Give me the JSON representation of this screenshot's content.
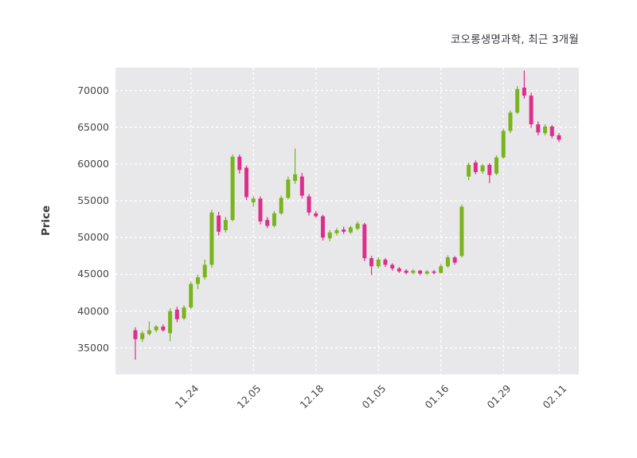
{
  "header": {
    "title": "코오롱생명과학, 최근 3개월"
  },
  "colors": {
    "up": "#7ab41e",
    "down": "#dc2f8c",
    "plot_bg": "#e8e8ea",
    "grid": "#ffffff",
    "title_text": "#3a3a42",
    "tick_text": "#474747"
  },
  "chart_data": {
    "type": "candlestick",
    "title": "코오롱생명과학, 최근 3개월",
    "ylabel": "Price",
    "ylim": [
      31400,
      73100
    ],
    "yticks": [
      35000,
      40000,
      45000,
      50000,
      55000,
      60000,
      65000,
      70000
    ],
    "xticks": [
      {
        "label": "11.24",
        "index": 8
      },
      {
        "label": "12.05",
        "index": 17
      },
      {
        "label": "12.18",
        "index": 26
      },
      {
        "label": "01.05",
        "index": 35
      },
      {
        "label": "01.16",
        "index": 44
      },
      {
        "label": "01.29",
        "index": 53
      },
      {
        "label": "02.11",
        "index": 61
      }
    ],
    "grid": "dashed-white",
    "legend": "none",
    "candles_format": [
      "open",
      "high",
      "low",
      "close"
    ],
    "candles": [
      [
        37400,
        37800,
        33400,
        36200
      ],
      [
        36200,
        37300,
        35800,
        37000
      ],
      [
        36900,
        38600,
        36700,
        37400
      ],
      [
        37400,
        38100,
        37100,
        37900
      ],
      [
        37900,
        38200,
        37200,
        37400
      ],
      [
        37000,
        40400,
        35900,
        40000
      ],
      [
        40200,
        40600,
        38500,
        38900
      ],
      [
        39000,
        40800,
        38800,
        40500
      ],
      [
        40500,
        44000,
        40300,
        43700
      ],
      [
        43700,
        45000,
        43000,
        44600
      ],
      [
        44600,
        47000,
        44300,
        46300
      ],
      [
        46300,
        53800,
        45900,
        53400
      ],
      [
        53000,
        53500,
        50300,
        50800
      ],
      [
        51000,
        52800,
        50700,
        52400
      ],
      [
        52400,
        61300,
        52200,
        61000
      ],
      [
        61000,
        61300,
        58700,
        59200
      ],
      [
        59500,
        59800,
        55100,
        55500
      ],
      [
        54800,
        55600,
        54200,
        55300
      ],
      [
        55300,
        55600,
        51800,
        52200
      ],
      [
        52400,
        52800,
        51300,
        51600
      ],
      [
        51600,
        53600,
        51400,
        53300
      ],
      [
        53300,
        55700,
        53100,
        55400
      ],
      [
        55400,
        58300,
        55200,
        57900
      ],
      [
        57700,
        62100,
        57300,
        58600
      ],
      [
        58300,
        58800,
        55300,
        55700
      ],
      [
        55600,
        55900,
        53000,
        53400
      ],
      [
        53300,
        53600,
        52700,
        52900
      ],
      [
        52900,
        53100,
        49600,
        50000
      ],
      [
        49900,
        51000,
        49500,
        50700
      ],
      [
        50600,
        51300,
        50300,
        51000
      ],
      [
        51100,
        51500,
        50500,
        50800
      ],
      [
        50700,
        51600,
        50500,
        51400
      ],
      [
        51200,
        52200,
        51000,
        51900
      ],
      [
        51800,
        52000,
        46800,
        47200
      ],
      [
        47200,
        47500,
        44900,
        46100
      ],
      [
        46100,
        47300,
        45800,
        47000
      ],
      [
        47000,
        47200,
        46000,
        46300
      ],
      [
        46300,
        46500,
        45500,
        45800
      ],
      [
        45800,
        46000,
        45200,
        45400
      ],
      [
        45500,
        45700,
        45000,
        45200
      ],
      [
        45200,
        45700,
        45000,
        45500
      ],
      [
        45500,
        45600,
        44900,
        45100
      ],
      [
        45100,
        45600,
        44900,
        45400
      ],
      [
        45400,
        45600,
        45000,
        45200
      ],
      [
        45200,
        46400,
        45100,
        46100
      ],
      [
        46100,
        47600,
        45900,
        47300
      ],
      [
        47300,
        47500,
        46300,
        46600
      ],
      [
        47500,
        54500,
        47300,
        54200
      ],
      [
        58300,
        60200,
        57800,
        59900
      ],
      [
        60200,
        60500,
        58600,
        58900
      ],
      [
        59000,
        60000,
        58700,
        59800
      ],
      [
        59900,
        60100,
        57400,
        58500
      ],
      [
        58700,
        61200,
        58500,
        60900
      ],
      [
        60900,
        64800,
        60700,
        64500
      ],
      [
        64500,
        67300,
        64200,
        67000
      ],
      [
        67000,
        70600,
        66800,
        70200
      ],
      [
        70400,
        72700,
        68900,
        69300
      ],
      [
        69300,
        69700,
        64900,
        65400
      ],
      [
        65400,
        65800,
        63900,
        64300
      ],
      [
        64200,
        65400,
        63900,
        65100
      ],
      [
        65100,
        65300,
        63500,
        63800
      ],
      [
        63900,
        64200,
        63000,
        63300
      ]
    ]
  }
}
